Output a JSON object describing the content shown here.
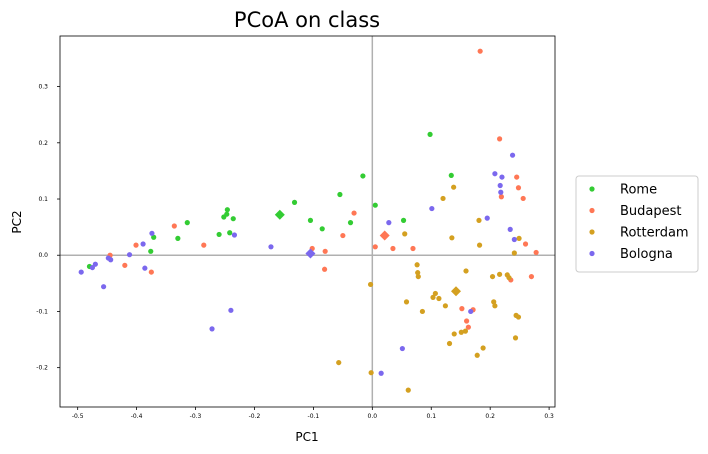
{
  "chart_data": {
    "type": "scatter",
    "title": "PCoA on class",
    "xlabel": "PC1",
    "ylabel": "PC2",
    "xlim": [
      -0.53,
      0.31
    ],
    "ylim": [
      -0.27,
      0.39
    ],
    "xticks": [
      "-0.5",
      "-0.4",
      "-0.3",
      "-0.2",
      "-0.1",
      "0.0",
      "0.1",
      "0.2",
      "0.3"
    ],
    "xtick_values": [
      -0.5,
      -0.4,
      -0.3,
      -0.2,
      -0.1,
      0.0,
      0.1,
      0.2,
      0.3
    ],
    "yticks": [
      "-0.2",
      "-0.1",
      "0.0",
      "0.1",
      "0.2",
      "0.3"
    ],
    "ytick_values": [
      -0.2,
      -0.1,
      0.0,
      0.1,
      0.2,
      0.3
    ],
    "reference_lines": {
      "x": 0,
      "y": 0,
      "color": "#b0b0b0"
    },
    "grid": false,
    "legend": "outside-right",
    "series": [
      {
        "name": "Rome",
        "color": "#33cc33",
        "centroid": [
          -0.157,
          0.072
        ],
        "points": [
          [
            -0.48,
            -0.02
          ],
          [
            -0.376,
            0.007
          ],
          [
            -0.371,
            0.032
          ],
          [
            -0.33,
            0.03
          ],
          [
            -0.314,
            0.058
          ],
          [
            -0.26,
            0.037
          ],
          [
            -0.252,
            0.068
          ],
          [
            -0.247,
            0.073
          ],
          [
            -0.246,
            0.081
          ],
          [
            -0.242,
            0.04
          ],
          [
            -0.236,
            0.065
          ],
          [
            -0.132,
            0.094
          ],
          [
            -0.105,
            0.062
          ],
          [
            -0.085,
            0.047
          ],
          [
            -0.055,
            0.108
          ],
          [
            -0.037,
            0.058
          ],
          [
            -0.016,
            0.141
          ],
          [
            0.005,
            0.089
          ],
          [
            0.053,
            0.062
          ],
          [
            0.098,
            0.215
          ],
          [
            0.134,
            0.142
          ]
        ]
      },
      {
        "name": "Budapest",
        "color": "#ff7755",
        "centroid": [
          0.021,
          0.035
        ],
        "points": [
          [
            -0.445,
            0.0
          ],
          [
            -0.42,
            -0.018
          ],
          [
            -0.401,
            0.018
          ],
          [
            -0.375,
            -0.03
          ],
          [
            -0.336,
            0.052
          ],
          [
            -0.286,
            0.018
          ],
          [
            -0.102,
            0.012
          ],
          [
            -0.081,
            -0.025
          ],
          [
            -0.08,
            0.007
          ],
          [
            -0.05,
            0.035
          ],
          [
            -0.031,
            0.075
          ],
          [
            0.005,
            0.015
          ],
          [
            0.035,
            0.012
          ],
          [
            0.069,
            0.012
          ],
          [
            0.152,
            -0.095
          ],
          [
            0.16,
            -0.117
          ],
          [
            0.163,
            -0.128
          ],
          [
            0.171,
            -0.097
          ],
          [
            0.183,
            0.363
          ],
          [
            0.216,
            0.207
          ],
          [
            0.219,
            0.104
          ],
          [
            0.235,
            -0.044
          ],
          [
            0.245,
            0.139
          ],
          [
            0.248,
            0.12
          ],
          [
            0.256,
            0.101
          ],
          [
            0.26,
            0.02
          ],
          [
            0.27,
            -0.038
          ],
          [
            0.278,
            0.005
          ]
        ]
      },
      {
        "name": "Rotterdam",
        "color": "#d4a020",
        "centroid": [
          0.142,
          -0.064
        ],
        "points": [
          [
            -0.057,
            -0.191
          ],
          [
            -0.003,
            -0.052
          ],
          [
            -0.002,
            -0.209
          ],
          [
            0.055,
            0.038
          ],
          [
            0.058,
            -0.083
          ],
          [
            0.061,
            -0.24
          ],
          [
            0.076,
            -0.017
          ],
          [
            0.077,
            -0.031
          ],
          [
            0.078,
            -0.038
          ],
          [
            0.085,
            -0.1
          ],
          [
            0.103,
            -0.075
          ],
          [
            0.107,
            -0.068
          ],
          [
            0.113,
            -0.077
          ],
          [
            0.12,
            0.101
          ],
          [
            0.124,
            -0.09
          ],
          [
            0.131,
            -0.157
          ],
          [
            0.135,
            0.031
          ],
          [
            0.138,
            0.121
          ],
          [
            0.139,
            -0.14
          ],
          [
            0.151,
            -0.137
          ],
          [
            0.158,
            -0.135
          ],
          [
            0.159,
            -0.028
          ],
          [
            0.178,
            -0.178
          ],
          [
            0.181,
            0.062
          ],
          [
            0.182,
            0.018
          ],
          [
            0.188,
            -0.165
          ],
          [
            0.204,
            -0.038
          ],
          [
            0.206,
            -0.083
          ],
          [
            0.208,
            -0.09
          ],
          [
            0.216,
            -0.034
          ],
          [
            0.229,
            -0.035
          ],
          [
            0.232,
            -0.04
          ],
          [
            0.241,
            0.004
          ],
          [
            0.243,
            -0.147
          ],
          [
            0.244,
            -0.107
          ],
          [
            0.248,
            -0.11
          ],
          [
            0.249,
            0.03
          ]
        ]
      },
      {
        "name": "Bologna",
        "color": "#7b68ee",
        "centroid": [
          -0.105,
          0.003
        ],
        "points": [
          [
            -0.494,
            -0.03
          ],
          [
            -0.475,
            -0.022
          ],
          [
            -0.47,
            -0.016
          ],
          [
            -0.456,
            -0.056
          ],
          [
            -0.448,
            -0.005
          ],
          [
            -0.444,
            -0.008
          ],
          [
            -0.412,
            0.001
          ],
          [
            -0.389,
            0.02
          ],
          [
            -0.386,
            -0.023
          ],
          [
            -0.374,
            0.039
          ],
          [
            -0.272,
            -0.131
          ],
          [
            -0.24,
            -0.098
          ],
          [
            -0.234,
            0.036
          ],
          [
            -0.172,
            0.015
          ],
          [
            0.015,
            -0.21
          ],
          [
            0.028,
            0.058
          ],
          [
            0.051,
            -0.166
          ],
          [
            0.101,
            0.083
          ],
          [
            0.167,
            -0.1
          ],
          [
            0.195,
            0.066
          ],
          [
            0.208,
            0.145
          ],
          [
            0.217,
            0.124
          ],
          [
            0.218,
            0.112
          ],
          [
            0.22,
            0.139
          ],
          [
            0.234,
            0.046
          ],
          [
            0.238,
            0.178
          ],
          [
            0.241,
            0.028
          ]
        ]
      }
    ]
  }
}
